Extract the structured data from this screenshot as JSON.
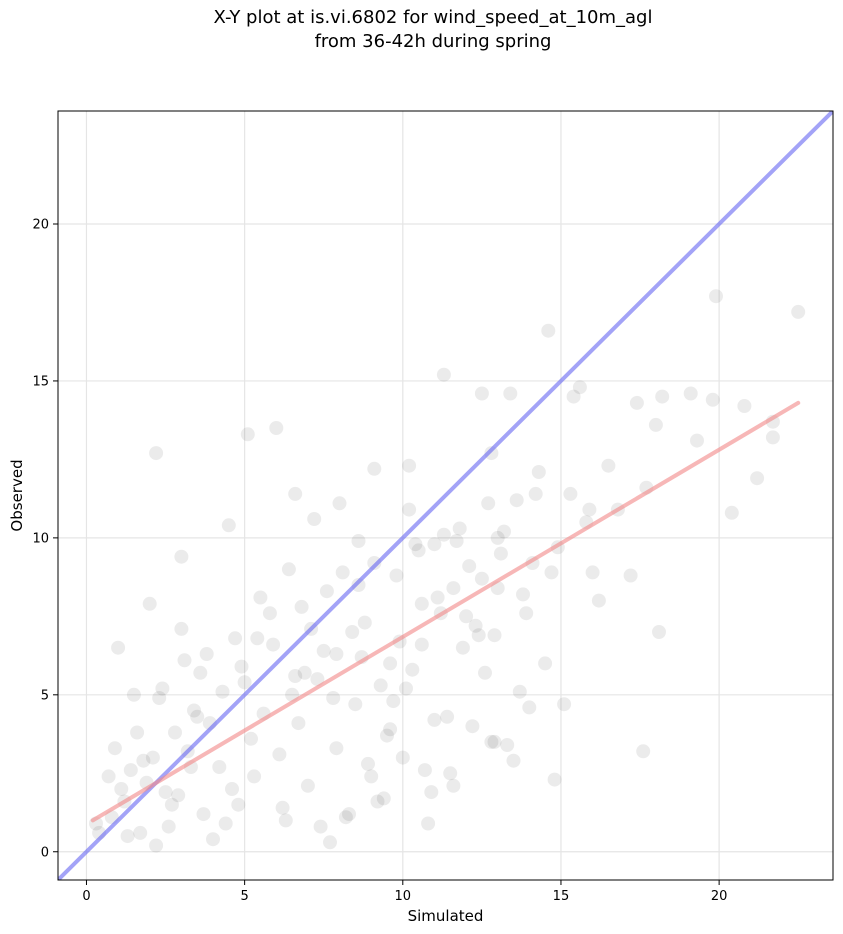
{
  "chart_data": {
    "type": "scatter",
    "title": "X-Y plot at is.vi.6802 for wind_speed_at_10m_agl\nfrom 36-42h during spring",
    "xlabel": "Simulated",
    "ylabel": "Observed",
    "xlim": [
      -0.9,
      23.6
    ],
    "ylim": [
      -0.9,
      23.6
    ],
    "x_ticks": [
      0,
      5,
      10,
      15,
      20
    ],
    "y_ticks": [
      0,
      5,
      10,
      15,
      20
    ],
    "grid": true,
    "point_color": "#000000",
    "point_alpha": 0.08,
    "series": [
      {
        "kind": "points",
        "x": [
          22.5,
          19.9,
          14.6,
          11.3,
          6.0,
          5.1,
          2.2,
          1.0,
          0.4,
          3.0,
          9.1,
          10.2,
          8.0,
          6.6,
          13.4,
          12.5,
          15.4,
          14.2,
          18.2,
          18.1,
          17.6,
          19.8,
          20.4,
          21.2,
          21.7,
          21.7,
          19.1,
          17.4,
          16.8,
          15.6,
          15.3,
          15.9,
          16.2,
          13.0,
          12.8,
          10.2,
          11.0,
          4.5,
          3.0,
          2.0,
          1.5,
          7.2,
          8.6,
          9.8,
          10.5,
          11.6,
          12.7,
          14.1,
          14.7,
          13.9,
          12.9,
          12.3,
          11.8,
          11.1,
          10.6,
          9.6,
          9.1,
          8.4,
          7.6,
          6.9,
          6.4,
          5.8,
          5.4,
          4.9,
          4.3,
          3.8,
          3.4,
          2.8,
          2.3,
          1.8,
          1.2,
          0.7,
          0.3,
          5.6,
          6.1,
          6.7,
          7.3,
          7.9,
          8.5,
          9.0,
          9.6,
          10.1,
          10.7,
          11.4,
          12.0,
          12.6,
          13.3,
          13.7,
          14.5,
          15.1,
          16.0,
          17.2,
          18.0,
          4.6,
          3.7,
          2.6,
          1.9,
          1.3,
          0.9,
          2.9,
          3.3,
          4.0,
          4.8,
          5.2,
          6.3,
          7.0,
          7.7,
          8.3,
          8.9,
          9.4,
          10.0,
          10.9,
          11.5,
          12.2,
          12.9,
          13.5,
          14.0,
          14.8,
          3.1,
          2.4,
          1.6,
          6.8,
          7.5,
          8.1,
          8.8,
          9.3,
          9.9,
          10.4,
          11.2,
          11.9,
          12.5,
          13.1,
          13.8,
          2.1,
          2.7,
          3.5,
          4.2,
          5.0,
          5.9,
          6.5,
          7.1,
          7.8,
          8.7,
          9.5,
          10.3,
          11.0,
          11.7,
          12.4,
          13.2,
          1.1,
          1.7,
          2.5,
          3.2,
          3.9,
          4.4,
          5.3,
          6.2,
          7.4,
          8.2,
          9.2,
          10.8,
          11.6,
          12.8,
          13.6,
          14.3,
          0.8,
          1.4,
          2.2,
          3.6,
          4.7,
          5.5,
          6.6,
          7.9,
          8.6,
          9.7,
          10.6,
          11.3,
          12.1,
          13.0,
          14.9,
          15.8,
          16.5,
          17.7,
          19.3,
          20.8
        ],
        "y": [
          17.2,
          17.7,
          16.6,
          15.2,
          13.5,
          13.3,
          12.7,
          6.5,
          0.6,
          9.4,
          12.2,
          12.3,
          11.1,
          11.4,
          14.6,
          14.6,
          14.5,
          11.4,
          14.5,
          7.0,
          3.2,
          14.4,
          10.8,
          11.9,
          13.7,
          13.2,
          14.6,
          14.3,
          10.9,
          14.8,
          11.4,
          10.9,
          8.0,
          10.0,
          12.7,
          10.9,
          9.8,
          10.4,
          7.1,
          7.9,
          5.0,
          10.6,
          9.9,
          8.8,
          9.6,
          8.4,
          11.1,
          9.2,
          8.9,
          7.6,
          6.9,
          7.2,
          10.3,
          8.1,
          6.6,
          6.0,
          9.2,
          7.0,
          8.3,
          5.7,
          9.0,
          7.6,
          6.8,
          5.9,
          5.1,
          6.3,
          4.5,
          3.8,
          4.9,
          2.9,
          1.6,
          2.4,
          0.9,
          4.4,
          3.1,
          4.1,
          5.5,
          3.3,
          4.7,
          2.4,
          3.9,
          5.2,
          2.6,
          4.3,
          7.5,
          5.7,
          3.4,
          5.1,
          6.0,
          4.7,
          8.9,
          8.8,
          13.6,
          2.0,
          1.2,
          0.8,
          2.2,
          0.5,
          3.3,
          1.8,
          2.7,
          0.4,
          1.5,
          3.6,
          1.0,
          2.1,
          0.3,
          1.2,
          2.8,
          1.7,
          3.0,
          1.9,
          2.5,
          4.0,
          3.5,
          2.9,
          4.6,
          2.3,
          6.1,
          5.2,
          3.8,
          7.8,
          6.4,
          8.9,
          7.3,
          5.3,
          6.7,
          9.8,
          7.6,
          6.5,
          8.7,
          9.5,
          8.2,
          3.0,
          1.5,
          4.3,
          2.7,
          5.4,
          6.6,
          5.0,
          7.1,
          4.9,
          6.2,
          3.7,
          5.8,
          4.2,
          9.9,
          6.9,
          10.2,
          2.0,
          0.6,
          1.9,
          3.2,
          4.1,
          0.9,
          2.4,
          1.4,
          0.8,
          1.1,
          1.6,
          0.9,
          2.1,
          3.5,
          11.2,
          12.1,
          1.1,
          2.6,
          0.2,
          5.7,
          6.8,
          8.1,
          5.6,
          6.3,
          8.5,
          4.8,
          7.9,
          10.1,
          9.1,
          8.4,
          9.7,
          10.5,
          12.3,
          11.6,
          13.1,
          14.2
        ]
      }
    ],
    "lines": [
      {
        "kind": "identity",
        "color": "#6a6af2",
        "x": [
          -0.9,
          23.6
        ],
        "y": [
          -0.9,
          23.6
        ]
      },
      {
        "kind": "fit",
        "color": "#f28b8b",
        "x": [
          0.2,
          22.5
        ],
        "y": [
          1.0,
          14.3
        ]
      }
    ]
  }
}
